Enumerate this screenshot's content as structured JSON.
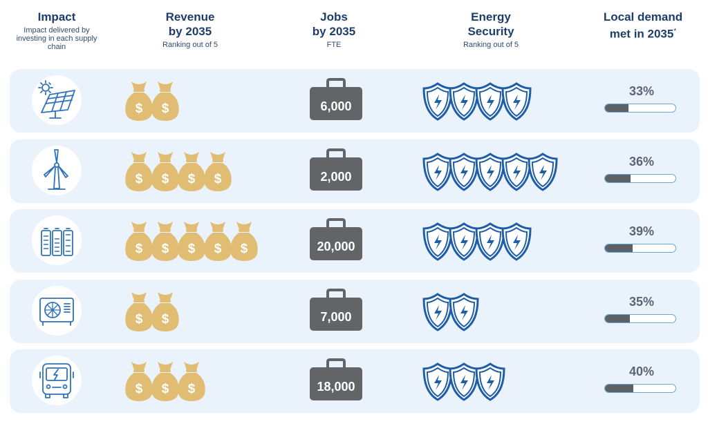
{
  "headers": {
    "impact": {
      "title": "Impact",
      "subtitle": "Impact delivered by investing in each supply chain"
    },
    "revenue": {
      "title_line1": "Revenue",
      "title_line2": "by 2035",
      "subtitle": "Ranking out of 5"
    },
    "jobs": {
      "title_line1": "Jobs",
      "title_line2": "by 2035",
      "subtitle": "FTE"
    },
    "energy": {
      "title_line1": "Energy",
      "title_line2": "Security",
      "subtitle": "Ranking out of 5"
    },
    "demand": {
      "title_line1": "Local demand",
      "title_line2": "met in 2035",
      "footnote_mark": "*"
    }
  },
  "colors": {
    "row_background": "#eaf2fb",
    "money_bag": "#e0bd73",
    "briefcase": "#636467",
    "shield": "#1e5da8",
    "icon_line": "#2f72b8",
    "bar_fill": "#5e6068",
    "bar_border": "#5fa8d8"
  },
  "chart_data": {
    "type": "table",
    "columns": [
      "Impact",
      "Revenue by 2035",
      "Jobs by 2035",
      "Energy Security",
      "Local demand met in 2035"
    ],
    "rows": [
      {
        "icon": "solar-panel-icon",
        "revenue_rank": 2,
        "jobs": "6,000",
        "energy_rank": 4,
        "demand_pct": "33%",
        "demand_value": 33
      },
      {
        "icon": "wind-turbine-icon",
        "revenue_rank": 4,
        "jobs": "2,000",
        "energy_rank": 5,
        "demand_pct": "36%",
        "demand_value": 36
      },
      {
        "icon": "battery-storage-icon",
        "revenue_rank": 5,
        "jobs": "20,000",
        "energy_rank": 4,
        "demand_pct": "39%",
        "demand_value": 39
      },
      {
        "icon": "heat-pump-icon",
        "revenue_rank": 2,
        "jobs": "7,000",
        "energy_rank": 2,
        "demand_pct": "35%",
        "demand_value": 35
      },
      {
        "icon": "electric-bus-icon",
        "revenue_rank": 3,
        "jobs": "18,000",
        "energy_rank": 3,
        "demand_pct": "40%",
        "demand_value": 40
      }
    ]
  }
}
